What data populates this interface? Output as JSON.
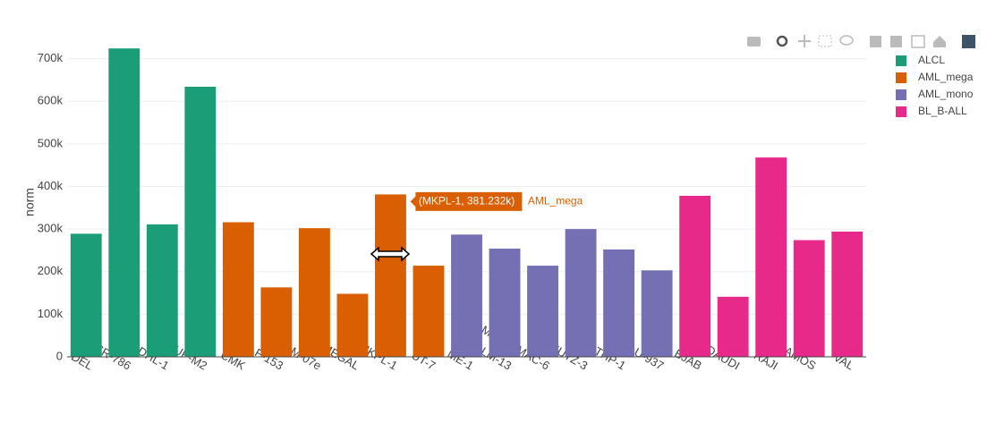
{
  "chart_data": {
    "type": "bar",
    "y_label": "norm",
    "categories": [
      "DEL",
      "SR-786",
      "SU-DHL-1",
      "SUP-M2",
      "CMK",
      "ELF-153",
      "M-07e",
      "MEGAL",
      "MKPL-1",
      "UT-7",
      "ME-1",
      "MOLM-13",
      "MONO-MAC-6",
      "MUTZ-3",
      "THP-1",
      "U-937",
      "BJAB",
      "DAUDI",
      "RAJI",
      "RAMOS",
      "VAL"
    ],
    "series": [
      {
        "name": "ALCL",
        "color": "#1b9e77",
        "values": [
          289000,
          724000,
          311000,
          634000,
          null,
          null,
          null,
          null,
          null,
          null,
          null,
          null,
          null,
          null,
          null,
          null,
          null,
          null,
          null,
          null,
          null
        ]
      },
      {
        "name": "AML_mega",
        "color": "#d95f02",
        "values": [
          null,
          null,
          null,
          null,
          316000,
          163000,
          302000,
          148000,
          381232,
          214000,
          null,
          null,
          null,
          null,
          null,
          null,
          null,
          null,
          null,
          null,
          null
        ]
      },
      {
        "name": "AML_mono",
        "color": "#7570b3",
        "values": [
          null,
          null,
          null,
          null,
          null,
          null,
          null,
          null,
          null,
          null,
          287000,
          254000,
          214000,
          300000,
          252000,
          203000,
          null,
          null,
          null,
          null,
          null
        ]
      },
      {
        "name": "BL_B-ALL",
        "color": "#e7298a",
        "values": [
          null,
          null,
          null,
          null,
          null,
          null,
          null,
          null,
          null,
          null,
          null,
          null,
          null,
          null,
          null,
          null,
          378000,
          141000,
          468000,
          274000,
          294000
        ]
      }
    ],
    "ylim": [
      0,
      760000
    ],
    "yticks": [
      0,
      {
        "value": 100000,
        "label": "100k"
      },
      {
        "value": 200000,
        "label": "200k"
      },
      {
        "value": 300000,
        "label": "300k"
      },
      {
        "value": 400000,
        "label": "400k"
      },
      {
        "value": 500000,
        "label": "500k"
      },
      {
        "value": 600000,
        "label": "600k"
      },
      {
        "value": 700000,
        "label": "700k"
      }
    ],
    "grid": true,
    "tooltip": {
      "text": "(MKPL-1, 381.232k)",
      "series": "AML_mega"
    }
  }
}
